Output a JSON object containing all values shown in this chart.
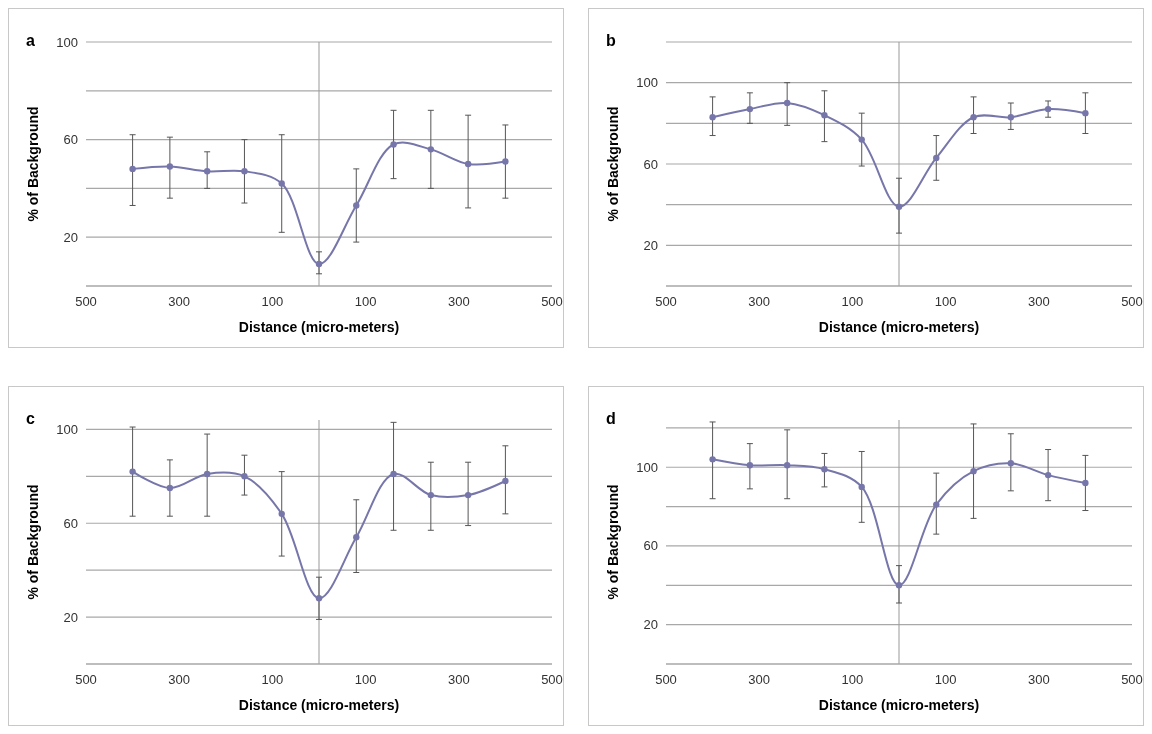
{
  "chart_data": [
    {
      "type": "line",
      "title": "a",
      "xlabel": "Distance (micro-meters)",
      "ylabel": "% of Background",
      "x": [
        -400,
        -320,
        -240,
        -160,
        -80,
        0,
        80,
        160,
        240,
        320,
        400
      ],
      "xlim": [
        -500,
        500
      ],
      "xticks": [
        {
          "value": -500,
          "label": "500"
        },
        {
          "value": -300,
          "label": "300"
        },
        {
          "value": -100,
          "label": "100"
        },
        {
          "value": 100,
          "label": "100"
        },
        {
          "value": 300,
          "label": "300"
        },
        {
          "value": 500,
          "label": "500"
        }
      ],
      "ylim": [
        0,
        100
      ],
      "yticks": [
        {
          "value": 0,
          "label": null
        },
        20,
        {
          "value": 40,
          "label": null
        },
        60,
        {
          "value": 80,
          "label": null
        },
        100
      ],
      "grid": "y",
      "marker": "circle",
      "line_style": "solid",
      "ref_lines": [
        {
          "axis": "x",
          "value": 0
        }
      ],
      "series": [
        {
          "color": "#7676aa",
          "values": [
            48,
            49,
            47,
            47,
            42,
            9,
            33,
            58,
            56,
            50,
            51
          ],
          "errors": [
            [
              33,
              62
            ],
            [
              36,
              61
            ],
            [
              40,
              55
            ],
            [
              34,
              60
            ],
            [
              22,
              62
            ],
            [
              5,
              14
            ],
            [
              18,
              48
            ],
            [
              44,
              72
            ],
            [
              40,
              72
            ],
            [
              32,
              70
            ],
            [
              36,
              66
            ]
          ]
        }
      ]
    },
    {
      "type": "line",
      "title": "b",
      "xlabel": "Distance (micro-meters)",
      "ylabel": "% of Background",
      "x": [
        -400,
        -320,
        -240,
        -160,
        -80,
        0,
        80,
        160,
        240,
        320,
        400
      ],
      "xlim": [
        -500,
        500
      ],
      "xticks": [
        {
          "value": -500,
          "label": "500"
        },
        {
          "value": -300,
          "label": "300"
        },
        {
          "value": -100,
          "label": "100"
        },
        {
          "value": 100,
          "label": "100"
        },
        {
          "value": 300,
          "label": "300"
        },
        {
          "value": 500,
          "label": "500"
        }
      ],
      "ylim": [
        0,
        120
      ],
      "yticks": [
        {
          "value": 0,
          "label": null
        },
        20,
        {
          "value": 40,
          "label": null
        },
        60,
        {
          "value": 80,
          "label": null
        },
        100,
        {
          "value": 120,
          "label": null
        }
      ],
      "grid": "y",
      "marker": "circle",
      "line_style": "solid",
      "ref_lines": [
        {
          "axis": "x",
          "value": 0
        }
      ],
      "series": [
        {
          "color": "#7676aa",
          "values": [
            83,
            87,
            90,
            84,
            72,
            39,
            63,
            83,
            83,
            87,
            85
          ],
          "errors": [
            [
              74,
              93
            ],
            [
              80,
              95
            ],
            [
              79,
              100
            ],
            [
              71,
              96
            ],
            [
              59,
              85
            ],
            [
              26,
              53
            ],
            [
              52,
              74
            ],
            [
              75,
              93
            ],
            [
              77,
              90
            ],
            [
              83,
              91
            ],
            [
              75,
              95
            ]
          ]
        }
      ]
    },
    {
      "type": "line",
      "title": "c",
      "xlabel": "Distance (micro-meters)",
      "ylabel": "% of Background",
      "x": [
        -400,
        -320,
        -240,
        -160,
        -80,
        0,
        80,
        160,
        240,
        320,
        400
      ],
      "xlim": [
        -500,
        500
      ],
      "xticks": [
        {
          "value": -500,
          "label": "500"
        },
        {
          "value": -300,
          "label": "300"
        },
        {
          "value": -100,
          "label": "100"
        },
        {
          "value": 100,
          "label": "100"
        },
        {
          "value": 300,
          "label": "300"
        },
        {
          "value": 500,
          "label": "500"
        }
      ],
      "ylim": [
        0,
        104
      ],
      "yticks": [
        {
          "value": 0,
          "label": null
        },
        20,
        {
          "value": 40,
          "label": null
        },
        60,
        {
          "value": 80,
          "label": null
        },
        100
      ],
      "grid": "y",
      "marker": "circle",
      "line_style": "solid",
      "ref_lines": [
        {
          "axis": "x",
          "value": 0
        }
      ],
      "series": [
        {
          "color": "#7676aa",
          "values": [
            82,
            75,
            81,
            80,
            64,
            28,
            54,
            81,
            72,
            72,
            78
          ],
          "errors": [
            [
              63,
              101
            ],
            [
              63,
              87
            ],
            [
              63,
              98
            ],
            [
              72,
              89
            ],
            [
              46,
              82
            ],
            [
              19,
              37
            ],
            [
              39,
              70
            ],
            [
              57,
              103
            ],
            [
              57,
              86
            ],
            [
              59,
              86
            ],
            [
              64,
              93
            ]
          ]
        }
      ]
    },
    {
      "type": "line",
      "title": "d",
      "xlabel": "Distance (micro-meters)",
      "ylabel": "% of Background",
      "x": [
        -400,
        -320,
        -240,
        -160,
        -80,
        0,
        80,
        160,
        240,
        320,
        400
      ],
      "xlim": [
        -500,
        500
      ],
      "xticks": [
        {
          "value": -500,
          "label": "500"
        },
        {
          "value": -300,
          "label": "300"
        },
        {
          "value": -100,
          "label": "100"
        },
        {
          "value": 100,
          "label": "100"
        },
        {
          "value": 300,
          "label": "300"
        },
        {
          "value": 500,
          "label": "500"
        }
      ],
      "ylim": [
        0,
        124
      ],
      "yticks": [
        {
          "value": 0,
          "label": null
        },
        20,
        {
          "value": 40,
          "label": null
        },
        60,
        {
          "value": 80,
          "label": null
        },
        100,
        {
          "value": 120,
          "label": null
        }
      ],
      "grid": "y",
      "marker": "circle",
      "line_style": "solid",
      "ref_lines": [
        {
          "axis": "x",
          "value": 0
        }
      ],
      "series": [
        {
          "color": "#7676aa",
          "values": [
            104,
            101,
            101,
            99,
            90,
            40,
            81,
            98,
            102,
            96,
            92
          ],
          "errors": [
            [
              84,
              123
            ],
            [
              89,
              112
            ],
            [
              84,
              119
            ],
            [
              90,
              107
            ],
            [
              72,
              108
            ],
            [
              31,
              50
            ],
            [
              66,
              97
            ],
            [
              74,
              122
            ],
            [
              88,
              117
            ],
            [
              83,
              109
            ],
            [
              78,
              106
            ]
          ]
        }
      ]
    }
  ]
}
